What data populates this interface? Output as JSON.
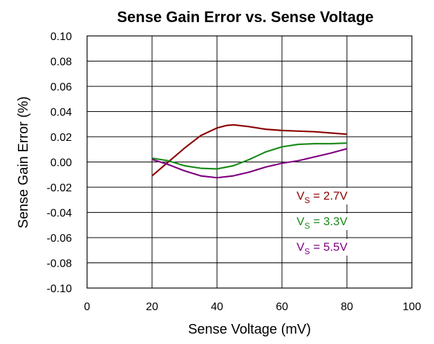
{
  "chart_data": {
    "type": "line",
    "title": "Sense Gain Error vs. Sense Voltage",
    "xlabel": "Sense Voltage (mV)",
    "ylabel": "Sense Gain Error (%)",
    "xlim": [
      0,
      100
    ],
    "ylim": [
      -0.1,
      0.1
    ],
    "x_ticks": [
      "0",
      "20",
      "40",
      "60",
      "80",
      "100"
    ],
    "y_ticks": [
      "0.10",
      "0.08",
      "0.06",
      "0.04",
      "0.02",
      "0.00",
      "-0.02",
      "-0.04",
      "-0.06",
      "-0.08",
      "-0.10"
    ],
    "grid": true,
    "series": [
      {
        "name_main": "V",
        "name_sub": "S",
        "name_rest": " = 2.7V",
        "color": "#8b0000",
        "points": [
          [
            20,
            -0.011
          ],
          [
            25,
            0.0
          ],
          [
            30,
            0.011
          ],
          [
            35,
            0.021
          ],
          [
            40,
            0.027
          ],
          [
            43,
            0.029
          ],
          [
            45,
            0.0295
          ],
          [
            50,
            0.028
          ],
          [
            55,
            0.026
          ],
          [
            60,
            0.025
          ],
          [
            65,
            0.0245
          ],
          [
            70,
            0.024
          ],
          [
            75,
            0.023
          ],
          [
            80,
            0.022
          ]
        ]
      },
      {
        "name_main": "V",
        "name_sub": "S",
        "name_rest": " = 3.3V",
        "color": "#1a8a1a",
        "points": [
          [
            20,
            0.003
          ],
          [
            25,
            0.001
          ],
          [
            30,
            -0.003
          ],
          [
            35,
            -0.005
          ],
          [
            40,
            -0.0055
          ],
          [
            45,
            -0.003
          ],
          [
            50,
            0.002
          ],
          [
            55,
            0.008
          ],
          [
            60,
            0.012
          ],
          [
            65,
            0.014
          ],
          [
            70,
            0.0145
          ],
          [
            75,
            0.0145
          ],
          [
            80,
            0.015
          ]
        ]
      },
      {
        "name_main": "V",
        "name_sub": "S",
        "name_rest": " = 5.5V",
        "color": "#800080",
        "points": [
          [
            20,
            0.002
          ],
          [
            25,
            -0.002
          ],
          [
            30,
            -0.007
          ],
          [
            35,
            -0.011
          ],
          [
            40,
            -0.0125
          ],
          [
            45,
            -0.011
          ],
          [
            50,
            -0.008
          ],
          [
            55,
            -0.004
          ],
          [
            60,
            -0.001
          ],
          [
            65,
            0.001
          ],
          [
            70,
            0.004
          ],
          [
            75,
            0.007
          ],
          [
            80,
            0.0105
          ]
        ]
      }
    ],
    "legend_placement": "right-center"
  }
}
